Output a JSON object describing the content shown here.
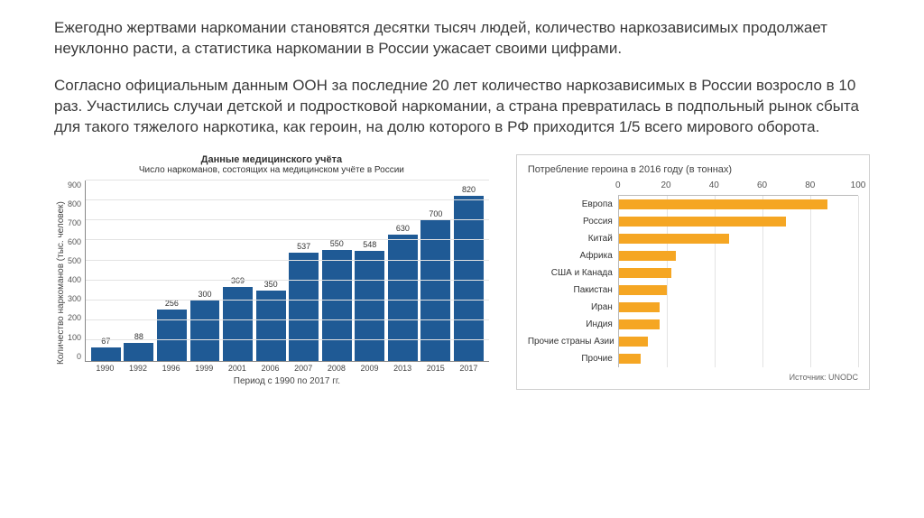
{
  "paragraph1": "Ежегодно жертвами наркомании становятся десятки тысяч людей, количество наркозависимых продолжает неуклонно расти, а статистика наркомании в России ужасает своими цифрами.",
  "paragraph2": "Согласно официальным данным ООН за последние 20 лет количество наркозависимых в России возросло в 10 раз. Участились случаи детской и подростковой наркомании, а страна превратилась в подпольный рынок сбыта для такого тяжелого наркотика, как героин, на долю которого в РФ приходится 1/5 всего мирового оборота.",
  "bar_chart": {
    "type": "bar",
    "title1": "Данные медицинского учёта",
    "title2": "Число наркоманов, состоящих на медицинском учёте в России",
    "ylabel": "Количество наркоманов (тыс. человек)",
    "xlabel": "Период с 1990 по 2017 гг.",
    "ymax": 900,
    "ytick_step": 100,
    "yticks": [
      "900",
      "800",
      "700",
      "600",
      "500",
      "400",
      "300",
      "200",
      "100",
      "0"
    ],
    "bar_color": "#1f5a95",
    "grid_color": "#e3e3e3",
    "categories": [
      "1990",
      "1992",
      "1996",
      "1999",
      "2001",
      "2006",
      "2007",
      "2008",
      "2009",
      "2013",
      "2015",
      "2017"
    ],
    "values": [
      67,
      88,
      256,
      300,
      369,
      350,
      537,
      550,
      548,
      630,
      700,
      820
    ]
  },
  "hbar_chart": {
    "type": "horizontal_bar",
    "title": "Потребление героина в 2016 году (в тоннах)",
    "xmax": 100,
    "xticks": [
      0,
      20,
      40,
      60,
      80,
      100
    ],
    "bar_color": "#f5a623",
    "grid_color": "#e3e3e3",
    "categories": [
      "Европа",
      "Россия",
      "Китай",
      "Африка",
      "США и Канада",
      "Пакистан",
      "Иран",
      "Индия",
      "Прочие страны Азии",
      "Прочие"
    ],
    "values": [
      87,
      70,
      46,
      24,
      22,
      20,
      17,
      17,
      12,
      9
    ],
    "source": "Источник: UNODC"
  }
}
